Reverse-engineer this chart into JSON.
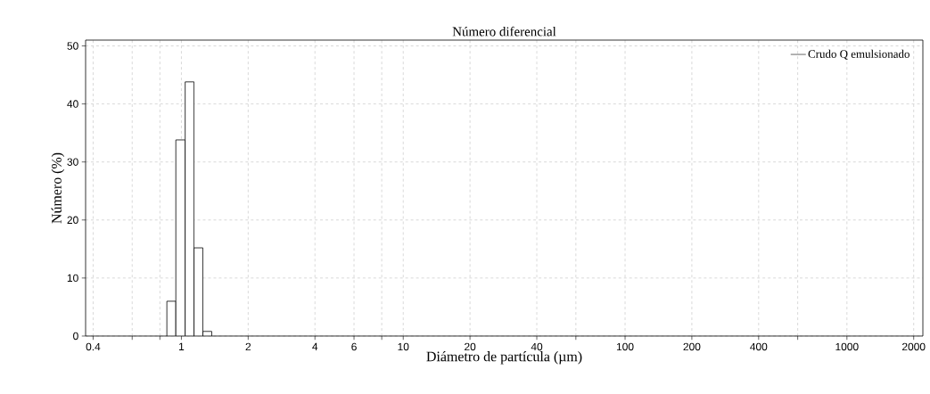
{
  "chart_data": {
    "type": "histogram",
    "title": "Número diferencial",
    "xlabel": "Diámetro de partícula (µm)",
    "ylabel": "Número (%)",
    "bins": [
      0.86,
      0.944,
      1.04,
      1.14,
      1.25,
      1.37
    ],
    "series": [
      {
        "name": "Crudo Q emulsionado",
        "color": "#000000",
        "values": [
          6.0,
          33.8,
          43.8,
          15.2,
          0.8
        ]
      }
    ],
    "log": "x",
    "xlim": [
      0.37,
      2200
    ],
    "ylim": [
      0,
      51
    ],
    "xticks": [
      0.4,
      {
        "value": 0.6,
        "label": null
      },
      {
        "value": 0.8,
        "label": null
      },
      1,
      2,
      4,
      6,
      {
        "value": 8,
        "label": null
      },
      10,
      20,
      40,
      {
        "value": 60,
        "label": null
      },
      100,
      200,
      400,
      {
        "value": 600,
        "label": null
      },
      1000,
      2000
    ],
    "yticks": [
      0,
      10,
      20,
      30,
      40,
      50
    ],
    "grid": true,
    "legend": "top right"
  }
}
